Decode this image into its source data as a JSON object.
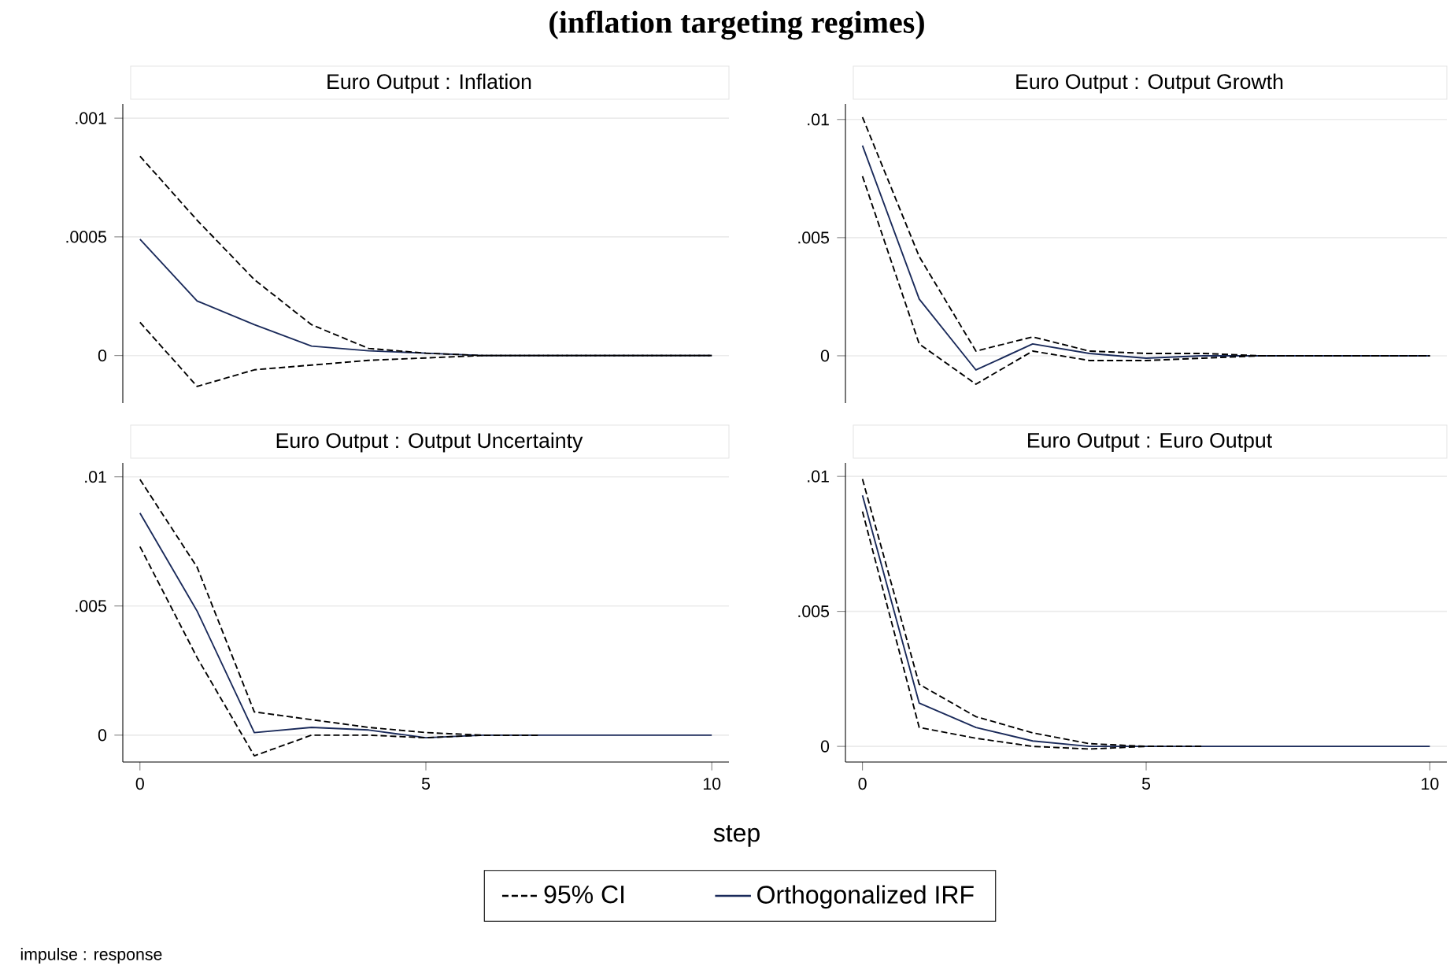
{
  "chart_data": [
    {
      "type": "line",
      "title": "Euro Output : Inflation",
      "x": [
        0,
        1,
        2,
        3,
        4,
        5,
        6,
        7,
        8,
        9,
        10
      ],
      "xlim": [
        -0.3,
        10.3
      ],
      "ylim": [
        -0.0002,
        0.00106
      ],
      "yticks": [
        0,
        {
          "value": 0.0005,
          "label": ".0005"
        },
        {
          "value": 0.001,
          "label": ".001"
        }
      ],
      "grid": "y",
      "tick_labels": "y",
      "series": [
        {
          "name": "95% CI",
          "color": "#000000",
          "line_style": "dashed",
          "values": [
            0.00084,
            0.00057,
            0.00032,
            0.00013,
            3e-05,
            1e-05,
            0,
            0,
            0,
            0,
            0
          ]
        },
        {
          "color": "#000000",
          "line_style": "dashed",
          "values": [
            0.00014,
            -0.00013,
            -6e-05,
            -4e-05,
            -2e-05,
            -1e-05,
            0,
            0,
            0,
            0,
            0
          ]
        },
        {
          "name": "Orthogonalized IRF",
          "color": "#1a2a5a",
          "line_style": "solid",
          "values": [
            0.00049,
            0.00023,
            0.00013,
            4e-05,
            2e-05,
            1e-05,
            0,
            0,
            0,
            0,
            0
          ]
        }
      ],
      "legend": "bottom",
      "subtitle": "(inflation targeting regimes)"
    },
    {
      "type": "line",
      "title": "Euro Output : Output Growth",
      "x": [
        0,
        1,
        2,
        3,
        4,
        5,
        6,
        7,
        8,
        9,
        10
      ],
      "xlim": [
        -0.3,
        10.3
      ],
      "ylim": [
        -0.002,
        0.01066
      ],
      "yticks": [
        0,
        {
          "value": 0.005,
          "label": ".005"
        },
        {
          "value": 0.01,
          "label": ".01"
        }
      ],
      "grid": "y",
      "tick_labels": "y",
      "series": [
        {
          "color": "#000000",
          "line_style": "dashed",
          "values": [
            0.0101,
            0.0042,
            0.0002,
            0.0008,
            0.0002,
            0.0001,
            0.0001,
            0,
            0,
            0,
            0
          ]
        },
        {
          "color": "#000000",
          "line_style": "dashed",
          "values": [
            0.0076,
            0.0005,
            -0.0012,
            0.0002,
            -0.0002,
            -0.0002,
            -0.0001,
            0,
            0,
            0,
            0
          ]
        },
        {
          "color": "#1a2a5a",
          "line_style": "solid",
          "values": [
            0.0089,
            0.0024,
            -0.0006,
            0.0005,
            0.0001,
            -0.0001,
            0,
            0,
            0,
            0,
            0
          ]
        }
      ]
    },
    {
      "type": "line",
      "title": "Euro Output : Output Uncertainty",
      "x": [
        0,
        1,
        2,
        3,
        4,
        5,
        6,
        7,
        8,
        9,
        10
      ],
      "xlim": [
        -0.3,
        10.3
      ],
      "xticks": [
        0,
        5,
        10
      ],
      "ylim": [
        -0.00104,
        0.01054
      ],
      "yticks": [
        0,
        {
          "value": 0.005,
          "label": ".005"
        },
        {
          "value": 0.01,
          "label": ".01"
        }
      ],
      "grid": "y",
      "series": [
        {
          "color": "#000000",
          "line_style": "dashed",
          "values": [
            0.0099,
            0.0065,
            0.0009,
            0.0006,
            0.0003,
            0.0001,
            0,
            0,
            null,
            null,
            null
          ]
        },
        {
          "color": "#000000",
          "line_style": "dashed",
          "values": [
            0.0073,
            0.003,
            -0.0008,
            0,
            0,
            -0.0001,
            0,
            0,
            null,
            null,
            null
          ]
        },
        {
          "color": "#1a2a5a",
          "line_style": "solid",
          "values": [
            0.0086,
            0.0048,
            0.0001,
            0.0003,
            0.0002,
            -0.0001,
            0,
            0,
            0,
            0,
            0
          ]
        }
      ]
    },
    {
      "type": "line",
      "title": "Euro Output : Euro Output",
      "x": [
        0,
        1,
        2,
        3,
        4,
        5,
        6,
        7,
        8,
        9,
        10
      ],
      "xlim": [
        -0.3,
        10.3
      ],
      "xticks": [
        0,
        5,
        10
      ],
      "ylim": [
        -0.00058,
        0.0105
      ],
      "yticks": [
        0,
        {
          "value": 0.005,
          "label": ".005"
        },
        {
          "value": 0.01,
          "label": ".01"
        }
      ],
      "grid": "y",
      "series": [
        {
          "color": "#000000",
          "line_style": "dashed",
          "values": [
            0.0099,
            0.0023,
            0.0011,
            0.0005,
            0.0001,
            0,
            0,
            null,
            null,
            null,
            null
          ]
        },
        {
          "color": "#000000",
          "line_style": "dashed",
          "values": [
            0.0087,
            0.0007,
            0.0003,
            0,
            -0.0001,
            0,
            0,
            null,
            null,
            null,
            null
          ]
        },
        {
          "color": "#1a2a5a",
          "line_style": "solid",
          "values": [
            0.0093,
            0.0016,
            0.0007,
            0.0002,
            0,
            0,
            0,
            0,
            0,
            0,
            0
          ]
        }
      ],
      "xlabel": "step",
      "annotations": [
        "impulse : response"
      ]
    }
  ]
}
